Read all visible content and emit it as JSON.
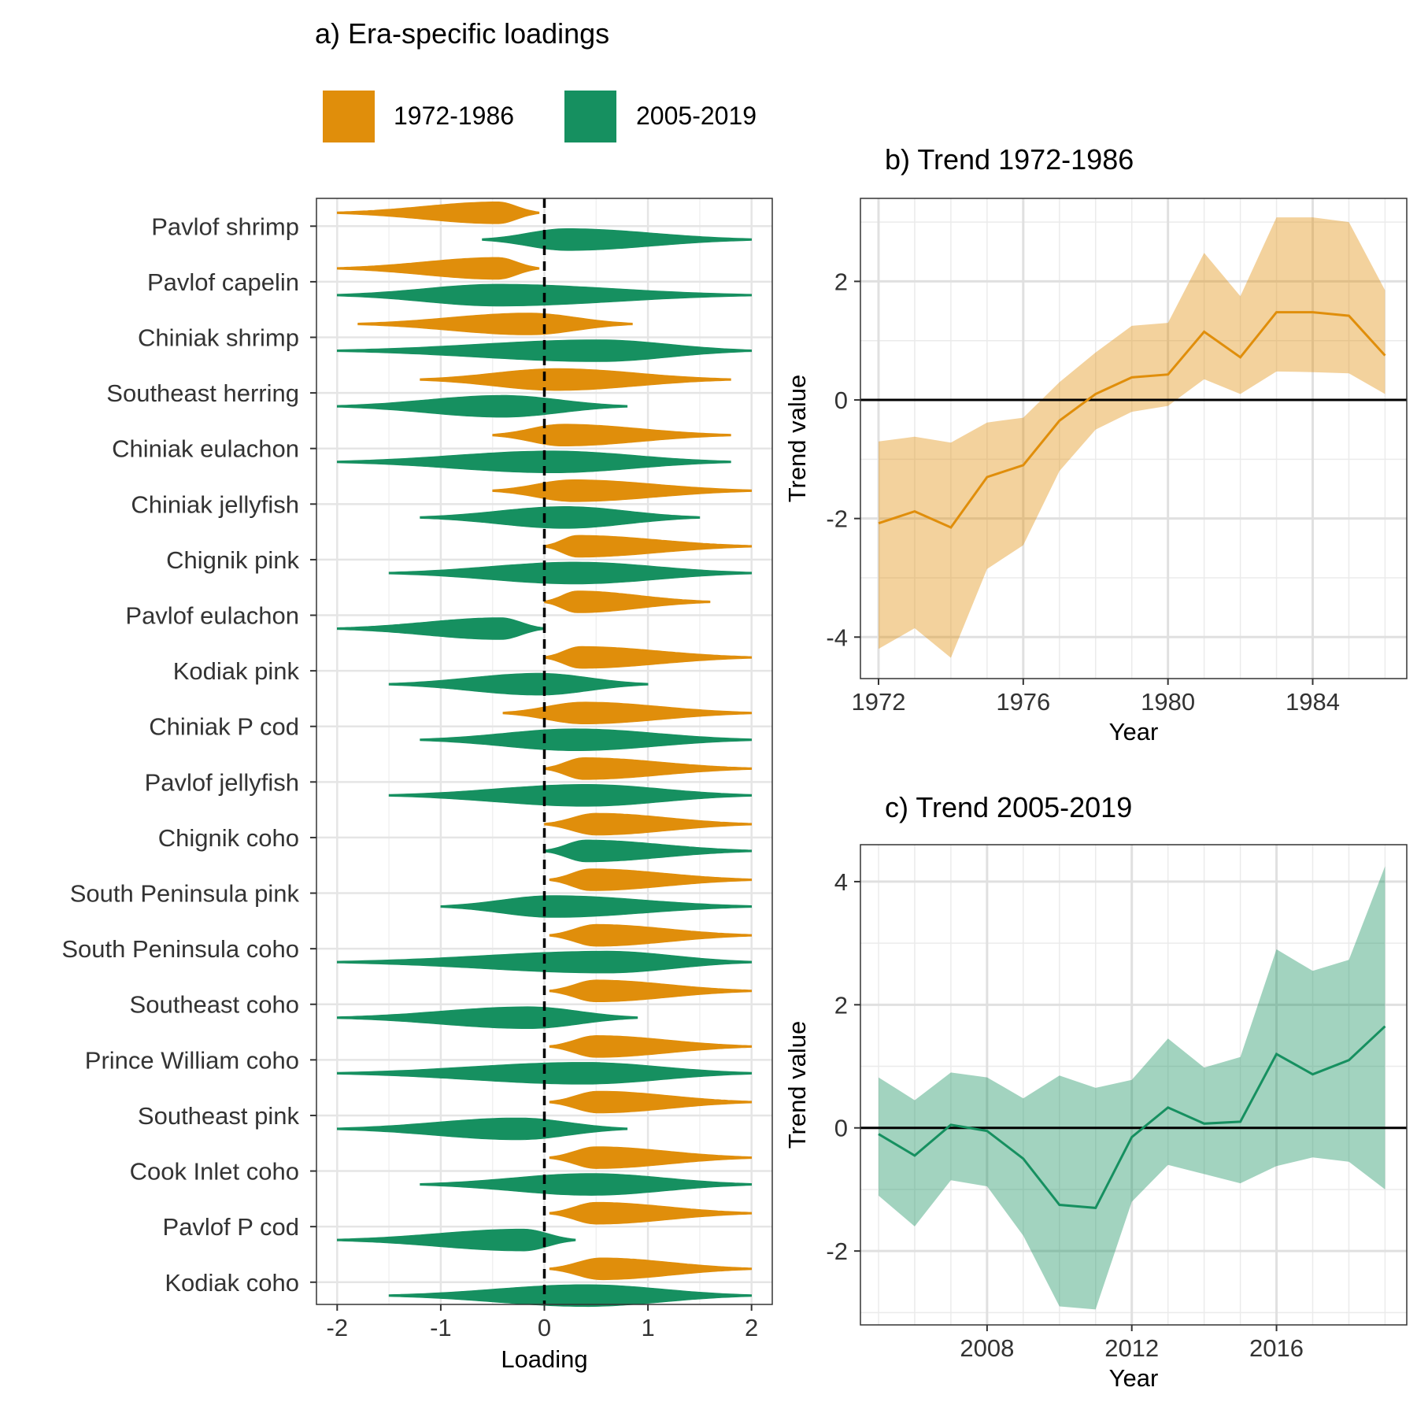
{
  "colors": {
    "era1": "#E08E0B",
    "era2": "#169060"
  },
  "chart_data": [
    {
      "type": "violin",
      "title": "a) Era-specific loadings",
      "xlabel": "Loading",
      "ylabel": "",
      "xlim": [
        -2.2,
        2.2
      ],
      "xticks": [
        "-2",
        "-1",
        "0",
        "1",
        "2"
      ],
      "legend": {
        "position": "top",
        "entries": [
          "1972-1986",
          "2005-2019"
        ]
      },
      "categories": [
        "Pavlof shrimp",
        "Pavlof capelin",
        "Chiniak shrimp",
        "Southeast herring",
        "Chiniak eulachon",
        "Chiniak jellyfish",
        "Chignik pink",
        "Pavlof eulachon",
        "Kodiak pink",
        "Chiniak P cod",
        "Pavlof jellyfish",
        "Chignik coho",
        "South Peninsula pink",
        "South Peninsula coho",
        "Southeast coho",
        "Prince William coho",
        "Southeast pink",
        "Cook Inlet coho",
        "Pavlof P cod",
        "Kodiak coho"
      ],
      "series": [
        {
          "name": "1972-1986",
          "min": [
            -2.0,
            -2.0,
            -1.8,
            -1.2,
            -0.5,
            -0.5,
            0.0,
            0.0,
            0.0,
            -0.4,
            0.0,
            0.0,
            0.05,
            0.05,
            0.05,
            0.05,
            0.05,
            0.05,
            0.05,
            0.05
          ],
          "mode": [
            -0.45,
            -0.45,
            -0.15,
            0.12,
            0.18,
            0.28,
            0.32,
            0.32,
            0.35,
            0.38,
            0.38,
            0.5,
            0.45,
            0.5,
            0.5,
            0.5,
            0.52,
            0.5,
            0.5,
            0.55
          ],
          "max": [
            -0.05,
            -0.05,
            0.85,
            1.8,
            1.8,
            2.0,
            2.0,
            1.6,
            2.0,
            2.0,
            2.0,
            2.0,
            2.0,
            2.0,
            2.0,
            2.0,
            2.0,
            2.0,
            2.0,
            2.0
          ]
        },
        {
          "name": "2005-2019",
          "min": [
            -0.6,
            -2.0,
            -2.0,
            -2.0,
            -2.0,
            -1.2,
            -1.5,
            -2.0,
            -1.5,
            -1.2,
            -1.5,
            0.0,
            -1.0,
            -2.0,
            -2.0,
            -2.0,
            -2.0,
            -1.2,
            -2.0,
            -1.5
          ],
          "mode": [
            0.22,
            -0.45,
            0.52,
            -0.4,
            0.08,
            0.2,
            0.3,
            -0.42,
            -0.05,
            0.3,
            0.4,
            0.4,
            0.08,
            0.6,
            -0.15,
            0.38,
            -0.25,
            0.45,
            -0.2,
            0.4
          ],
          "max": [
            2.0,
            2.0,
            2.0,
            0.8,
            1.8,
            1.5,
            2.0,
            0.0,
            1.0,
            2.0,
            2.0,
            2.0,
            2.0,
            2.0,
            0.9,
            2.0,
            0.8,
            2.0,
            0.3,
            2.0
          ]
        }
      ]
    },
    {
      "type": "line",
      "title": "b) Trend 1972-1986",
      "xlabel": "Year",
      "ylabel": "Trend value",
      "xlim": [
        1971.5,
        1986.6
      ],
      "ylim": [
        -4.7,
        3.4
      ],
      "xticks": [
        "1972",
        "1976",
        "1980",
        "1984"
      ],
      "yticks": [
        "2",
        "0",
        "-2",
        "-4"
      ],
      "x": [
        1972,
        1973,
        1974,
        1975,
        1976,
        1977,
        1978,
        1979,
        1980,
        1981,
        1982,
        1983,
        1984,
        1985,
        1986
      ],
      "series": [
        {
          "name": "",
          "values": [
            -2.08,
            -1.88,
            -2.15,
            -1.3,
            -1.1,
            -0.35,
            0.1,
            0.38,
            0.43,
            1.15,
            0.72,
            1.48,
            1.48,
            1.42,
            0.75
          ],
          "lower": [
            -4.2,
            -3.85,
            -4.35,
            -2.85,
            -2.45,
            -1.2,
            -0.5,
            -0.2,
            -0.1,
            0.35,
            0.1,
            0.48,
            0.47,
            0.45,
            0.1
          ],
          "upper": [
            -0.7,
            -0.62,
            -0.72,
            -0.38,
            -0.3,
            0.3,
            0.8,
            1.25,
            1.3,
            2.48,
            1.75,
            3.08,
            3.08,
            3.0,
            1.85
          ]
        }
      ]
    },
    {
      "type": "line",
      "title": "c) Trend 2005-2019",
      "xlabel": "Year",
      "ylabel": "Trend value",
      "xlim": [
        2004.5,
        2019.6
      ],
      "ylim": [
        -3.2,
        4.6
      ],
      "xticks": [
        "2008",
        "2012",
        "2016"
      ],
      "yticks": [
        "4",
        "2",
        "0",
        "-2"
      ],
      "x": [
        2005,
        2006,
        2007,
        2008,
        2009,
        2010,
        2011,
        2012,
        2013,
        2014,
        2015,
        2016,
        2017,
        2018,
        2019
      ],
      "series": [
        {
          "name": "",
          "values": [
            -0.1,
            -0.45,
            0.05,
            -0.05,
            -0.5,
            -1.25,
            -1.3,
            -0.15,
            0.33,
            0.07,
            0.1,
            1.2,
            0.87,
            1.1,
            1.65
          ],
          "lower": [
            -1.1,
            -1.6,
            -0.85,
            -0.95,
            -1.75,
            -2.9,
            -2.95,
            -1.2,
            -0.6,
            -0.75,
            -0.9,
            -0.62,
            -0.48,
            -0.55,
            -1.0
          ],
          "upper": [
            0.82,
            0.45,
            0.9,
            0.82,
            0.48,
            0.85,
            0.65,
            0.78,
            1.45,
            0.98,
            1.15,
            2.9,
            2.55,
            2.73,
            4.25
          ]
        }
      ]
    }
  ]
}
